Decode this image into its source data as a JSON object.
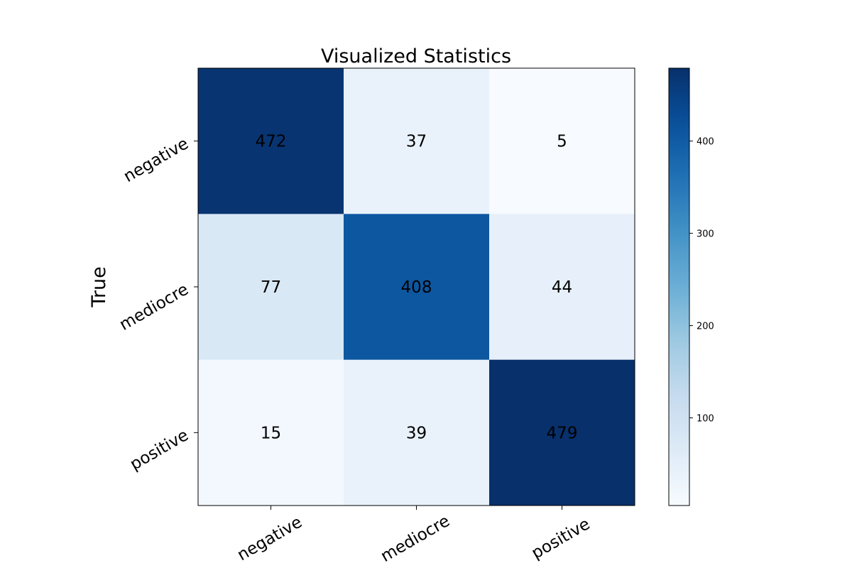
{
  "chart_data": {
    "type": "heatmap",
    "title": "Visualized Statistics",
    "xlabel": "",
    "ylabel": "True",
    "x_categories": [
      "negative",
      "mediocre",
      "positive"
    ],
    "y_categories": [
      "negative",
      "mediocre",
      "positive"
    ],
    "values": [
      [
        472,
        37,
        5
      ],
      [
        77,
        408,
        44
      ],
      [
        15,
        39,
        479
      ]
    ],
    "colormap": "Blues",
    "colorbar": {
      "min": 5,
      "max": 479,
      "ticks": [
        100,
        200,
        300,
        400
      ],
      "tick_labels": [
        "100",
        "200",
        "300",
        "400"
      ]
    },
    "legend": "none",
    "grid": false
  }
}
